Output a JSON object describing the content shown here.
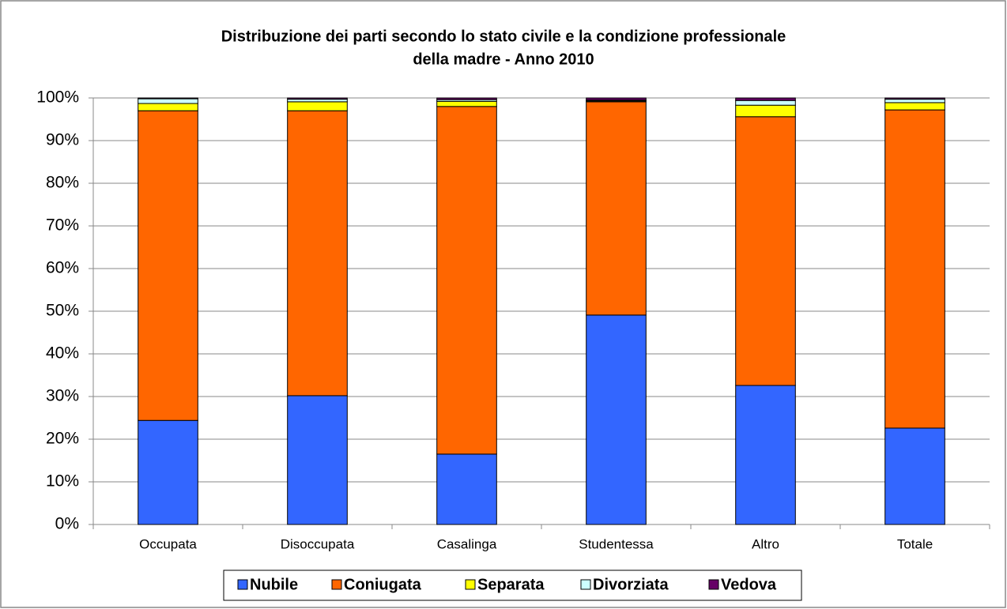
{
  "chart_data": {
    "type": "stacked_bar",
    "title": [
      "Distribuzione dei parti secondo lo stato civile e la condizione professionale",
      "della madre - Anno 2010"
    ],
    "categories": [
      "Occupata",
      "Disoccupata",
      "Casalinga",
      "Studentessa",
      "Altro",
      "Totale"
    ],
    "series": [
      {
        "name": "Nubile",
        "color": "#3366ff",
        "values": [
          24.4,
          30.2,
          16.5,
          49.1,
          32.6,
          22.6
        ]
      },
      {
        "name": "Coniugata",
        "color": "#ff6600",
        "values": [
          72.6,
          66.8,
          81.5,
          50.0,
          63.0,
          74.6
        ]
      },
      {
        "name": "Separata",
        "color": "#ffff00",
        "values": [
          1.7,
          2.1,
          1.2,
          0.2,
          2.7,
          1.7
        ]
      },
      {
        "name": "Divorziata",
        "color": "#ccffff",
        "values": [
          1.1,
          0.6,
          0.4,
          0.2,
          1.1,
          0.8
        ]
      },
      {
        "name": "Vedova",
        "color": "#660066",
        "values": [
          0.2,
          0.3,
          0.4,
          0.5,
          0.6,
          0.3
        ]
      }
    ],
    "ylim": [
      0,
      100
    ],
    "yticks": [
      {
        "value": 0,
        "label": "0%"
      },
      {
        "value": 10,
        "label": "10%"
      },
      {
        "value": 20,
        "label": "20%"
      },
      {
        "value": 30,
        "label": "30%"
      },
      {
        "value": 40,
        "label": "40%"
      },
      {
        "value": 50,
        "label": "50%"
      },
      {
        "value": 60,
        "label": "60%"
      },
      {
        "value": 70,
        "label": "70%"
      },
      {
        "value": 80,
        "label": "80%"
      },
      {
        "value": 90,
        "label": "90%"
      },
      {
        "value": 100,
        "label": "100%"
      }
    ],
    "grid": true,
    "legend": "bottom"
  }
}
